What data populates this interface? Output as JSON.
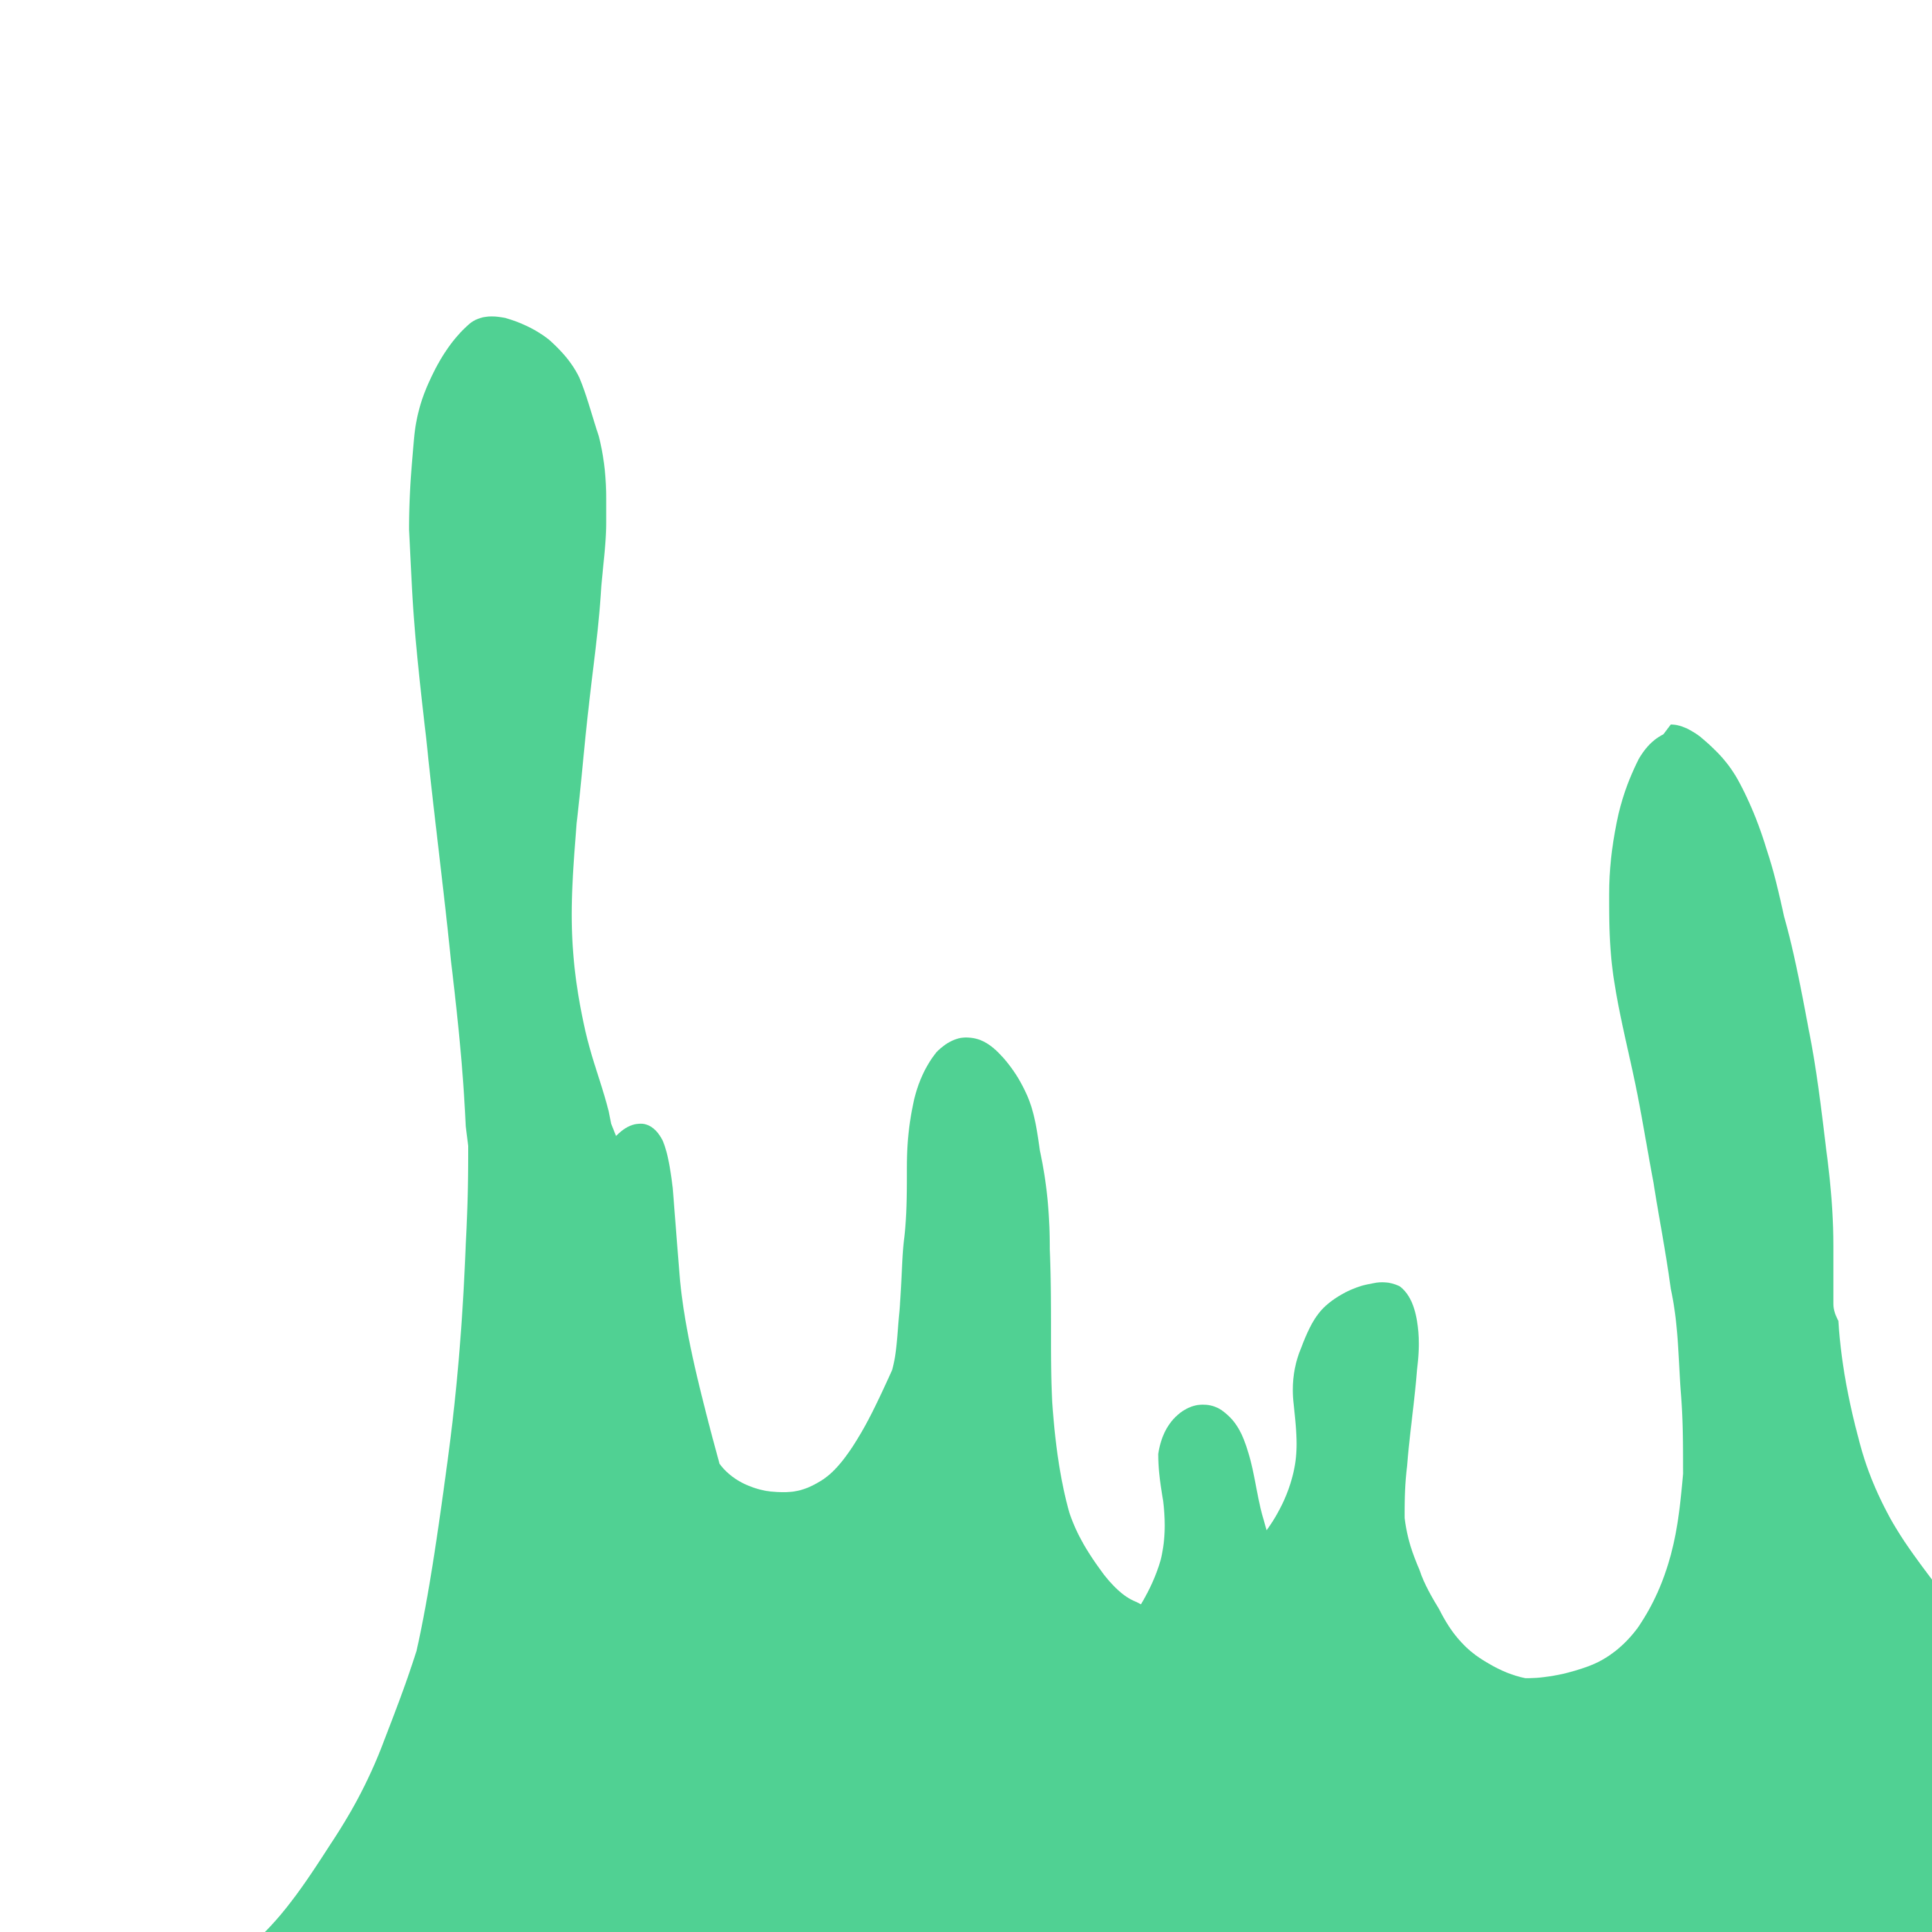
{
  "illustration": {
    "subject": "slime-drips-icon",
    "colors": {
      "background": "#ffffff",
      "slime": "#50d193"
    }
  }
}
